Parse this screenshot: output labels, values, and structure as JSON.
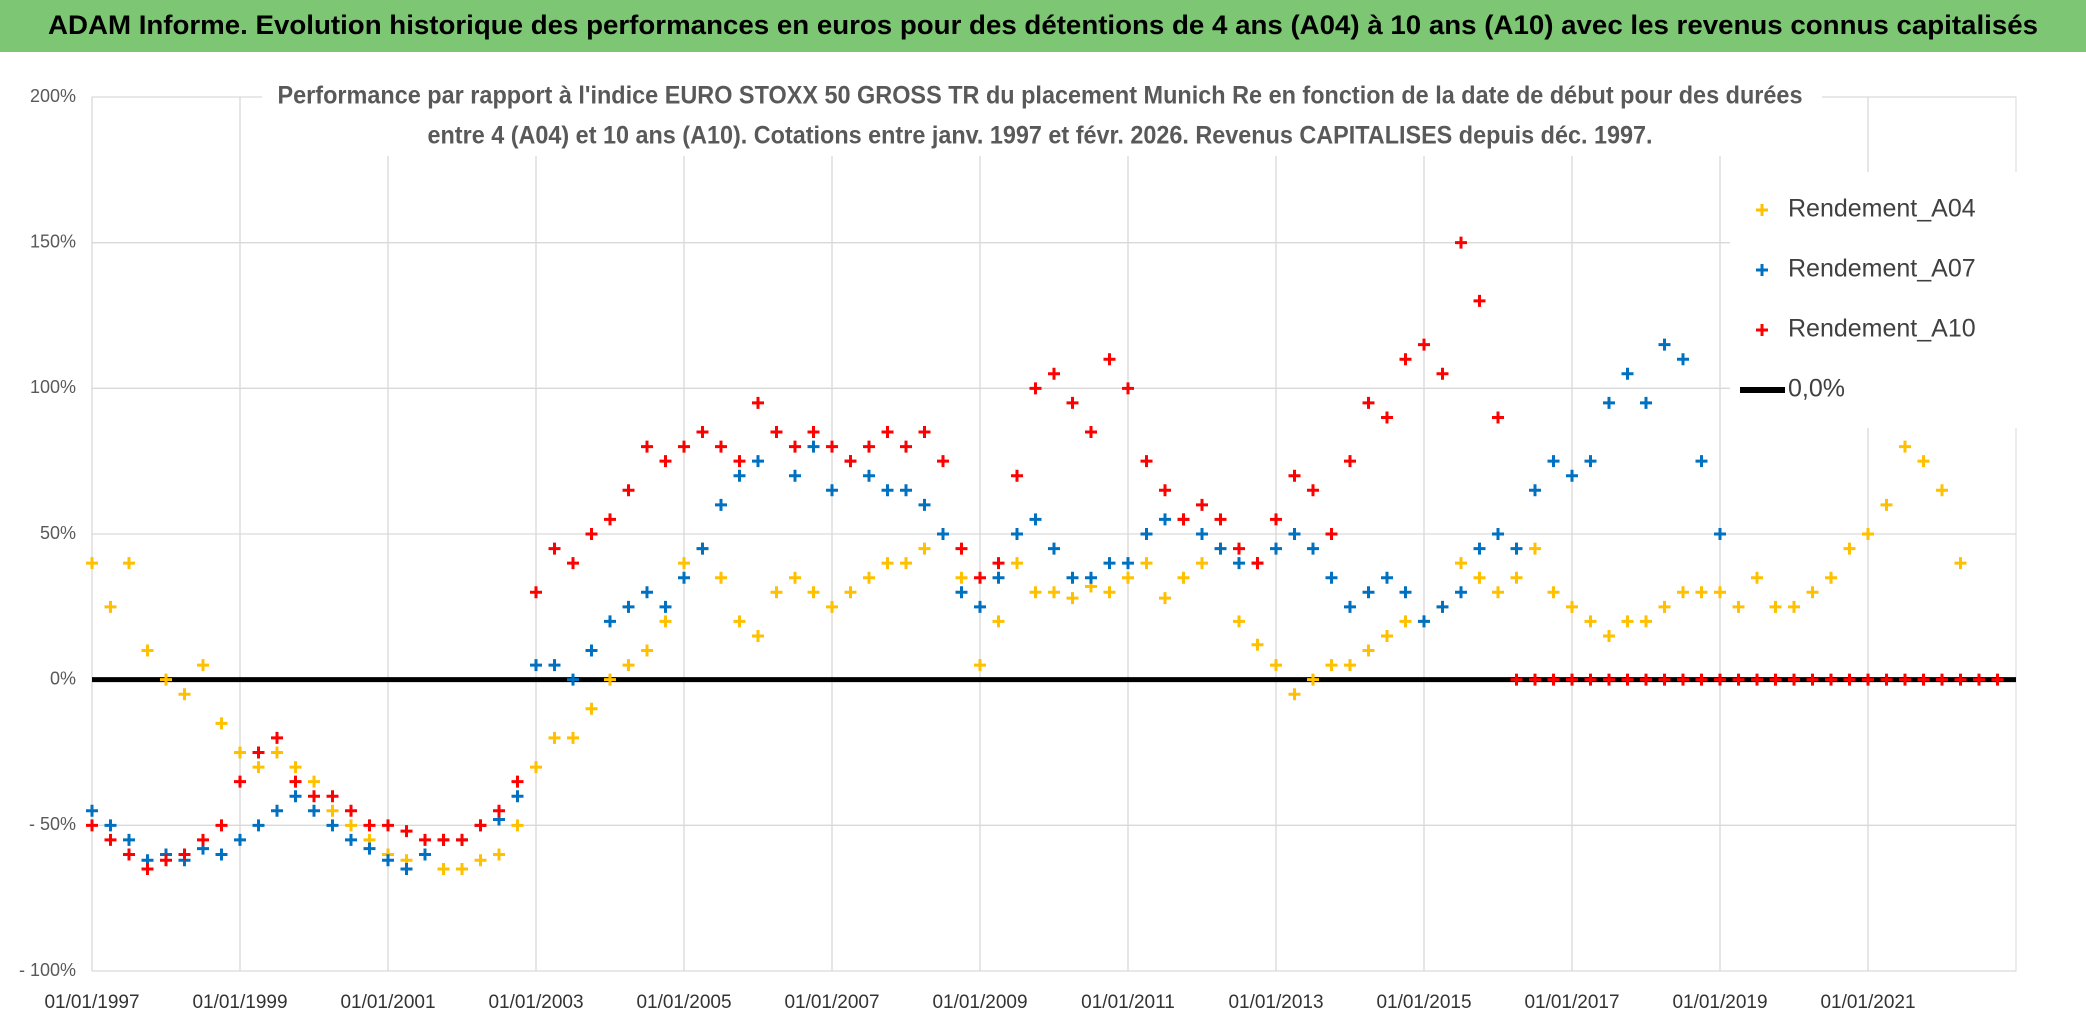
{
  "chart_data": {
    "type": "scatter",
    "title": "ADAM Informe. Evolution historique des performances en euros pour des détentions de 4 ans (A04) à 10 ans (A10) avec les revenus connus capitalisés",
    "subtitle": [
      "Performance par rapport à l'indice EURO STOXX 50 GROSS TR  du placement Munich Re en fonction de la date de début pour des durées",
      "entre 4 (A04) et 10 ans (A10). Cotations entre janv. 1997 et févr. 2026. Revenus CAPITALISES depuis déc. 1997."
    ],
    "x": [
      "1997-01-01",
      "1997-04-01",
      "1997-07-01",
      "1997-10-01",
      "1998-01-01",
      "1998-04-01",
      "1998-07-01",
      "1998-10-01",
      "1999-01-01",
      "1999-04-01",
      "1999-07-01",
      "1999-10-01",
      "2000-01-01",
      "2000-04-01",
      "2000-07-01",
      "2000-10-01",
      "2001-01-01",
      "2001-04-01",
      "2001-07-01",
      "2001-10-01",
      "2002-01-01",
      "2002-04-01",
      "2002-07-01",
      "2002-10-01",
      "2003-01-01",
      "2003-04-01",
      "2003-07-01",
      "2003-10-01",
      "2004-01-01",
      "2004-04-01",
      "2004-07-01",
      "2004-10-01",
      "2005-01-01",
      "2005-04-01",
      "2005-07-01",
      "2005-10-01",
      "2006-01-01",
      "2006-04-01",
      "2006-07-01",
      "2006-10-01",
      "2007-01-01",
      "2007-04-01",
      "2007-07-01",
      "2007-10-01",
      "2008-01-01",
      "2008-04-01",
      "2008-07-01",
      "2008-10-01",
      "2009-01-01",
      "2009-04-01",
      "2009-07-01",
      "2009-10-01",
      "2010-01-01",
      "2010-04-01",
      "2010-07-01",
      "2010-10-01",
      "2011-01-01",
      "2011-04-01",
      "2011-07-01",
      "2011-10-01",
      "2012-01-01",
      "2012-04-01",
      "2012-07-01",
      "2012-10-01",
      "2013-01-01",
      "2013-04-01",
      "2013-07-01",
      "2013-10-01",
      "2014-01-01",
      "2014-04-01",
      "2014-07-01",
      "2014-10-01",
      "2015-01-01",
      "2015-04-01",
      "2015-07-01",
      "2015-10-01",
      "2016-01-01",
      "2016-04-01",
      "2016-07-01",
      "2016-10-01",
      "2017-01-01",
      "2017-04-01",
      "2017-07-01",
      "2017-10-01",
      "2018-01-01",
      "2018-04-01",
      "2018-07-01",
      "2018-10-01",
      "2019-01-01",
      "2019-04-01",
      "2019-07-01",
      "2019-10-01",
      "2020-01-01",
      "2020-04-01",
      "2020-07-01",
      "2020-10-01",
      "2021-01-01",
      "2021-04-01",
      "2021-07-01",
      "2021-10-01",
      "2022-01-01",
      "2022-04-01",
      "2022-07-01",
      "2022-10-01"
    ],
    "series": [
      {
        "name": "Rendement_A04",
        "color": "#ffc000",
        "values": [
          40,
          25,
          40,
          10,
          0,
          -5,
          5,
          -15,
          -25,
          -30,
          -25,
          -30,
          -35,
          -45,
          -50,
          -55,
          -60,
          -62,
          -60,
          -65,
          -65,
          -62,
          -60,
          -50,
          -30,
          -20,
          -20,
          -10,
          0,
          5,
          10,
          20,
          40,
          45,
          35,
          20,
          15,
          30,
          35,
          30,
          25,
          30,
          35,
          40,
          40,
          45,
          50,
          35,
          5,
          20,
          40,
          30,
          30,
          28,
          32,
          30,
          35,
          40,
          28,
          35,
          40,
          45,
          20,
          12,
          5,
          -5,
          0,
          5,
          5,
          10,
          15,
          20,
          20,
          25,
          40,
          35,
          30,
          35,
          45,
          30,
          25,
          20,
          15,
          20,
          20,
          25,
          30,
          30,
          30,
          25,
          35,
          25,
          25,
          30,
          35,
          45,
          50,
          60,
          80,
          75,
          65,
          40,
          null,
          null
        ]
      },
      {
        "name": "Rendement_A07",
        "color": "#0070c0",
        "values": [
          -45,
          -50,
          -55,
          -62,
          -60,
          -62,
          -58,
          -60,
          -55,
          -50,
          -45,
          -40,
          -45,
          -50,
          -55,
          -58,
          -62,
          -65,
          -60,
          -55,
          -55,
          -50,
          -48,
          -40,
          5,
          5,
          0,
          10,
          20,
          25,
          30,
          25,
          35,
          45,
          60,
          70,
          75,
          85,
          70,
          80,
          65,
          75,
          70,
          65,
          65,
          60,
          50,
          30,
          25,
          35,
          50,
          55,
          45,
          35,
          35,
          40,
          40,
          50,
          55,
          55,
          50,
          45,
          40,
          40,
          45,
          50,
          45,
          35,
          25,
          30,
          35,
          30,
          20,
          25,
          30,
          45,
          50,
          45,
          65,
          75,
          70,
          75,
          95,
          105,
          95,
          115,
          110,
          75,
          50,
          null,
          null,
          null,
          null,
          null,
          null,
          null,
          null,
          null,
          null,
          null,
          null,
          null,
          null,
          null
        ]
      },
      {
        "name": "Rendement_A10",
        "color": "#ff0000",
        "values": [
          -50,
          -55,
          -60,
          -65,
          -62,
          -60,
          -55,
          -50,
          -35,
          -25,
          -20,
          -35,
          -40,
          -40,
          -45,
          -50,
          -50,
          -52,
          -55,
          -55,
          -55,
          -50,
          -45,
          -35,
          30,
          45,
          40,
          50,
          55,
          65,
          80,
          75,
          80,
          85,
          80,
          75,
          95,
          85,
          80,
          85,
          80,
          75,
          80,
          85,
          80,
          85,
          75,
          45,
          35,
          40,
          70,
          100,
          105,
          95,
          85,
          110,
          100,
          75,
          65,
          55,
          60,
          55,
          45,
          40,
          55,
          70,
          65,
          50,
          75,
          95,
          90,
          110,
          115,
          105,
          150,
          130,
          90,
          0,
          0,
          0,
          0,
          0,
          0,
          0,
          0,
          0,
          0,
          0,
          0,
          0,
          0,
          0,
          0,
          0,
          0,
          0,
          0,
          0,
          0,
          0,
          0,
          0,
          0,
          0
        ]
      },
      {
        "name": "0,0%",
        "color": "#000000",
        "type": "line",
        "x": [
          "1997-01-01",
          "2023-01-01"
        ],
        "values": [
          0,
          0
        ]
      }
    ],
    "xlim": [
      "1997-01-01",
      "2023-01-01"
    ],
    "xticks": [
      {
        "value": "1997-01-01",
        "label": "01/01/1997"
      },
      {
        "value": "1999-01-01",
        "label": "01/01/1999"
      },
      {
        "value": "2001-01-01",
        "label": "01/01/2001"
      },
      {
        "value": "2003-01-01",
        "label": "01/01/2003"
      },
      {
        "value": "2005-01-01",
        "label": "01/01/2005"
      },
      {
        "value": "2007-01-01",
        "label": "01/01/2007"
      },
      {
        "value": "2009-01-01",
        "label": "01/01/2009"
      },
      {
        "value": "2011-01-01",
        "label": "01/01/2011"
      },
      {
        "value": "2013-01-01",
        "label": "01/01/2013"
      },
      {
        "value": "2015-01-01",
        "label": "01/01/2015"
      },
      {
        "value": "2017-01-01",
        "label": "01/01/2017"
      },
      {
        "value": "2019-01-01",
        "label": "01/01/2019"
      },
      {
        "value": "2021-01-01",
        "label": "01/01/2021"
      }
    ],
    "ylim": [
      -100,
      200
    ],
    "yticks": [
      {
        "value": -100,
        "label": "- 100%"
      },
      {
        "value": -50,
        "label": "- 50%"
      },
      {
        "value": 0,
        "label": "0%"
      },
      {
        "value": 50,
        "label": "50%"
      },
      {
        "value": 100,
        "label": "100%"
      },
      {
        "value": 150,
        "label": "150%"
      },
      {
        "value": 200,
        "label": "200%"
      }
    ],
    "grid": true,
    "legend": "upper right"
  }
}
